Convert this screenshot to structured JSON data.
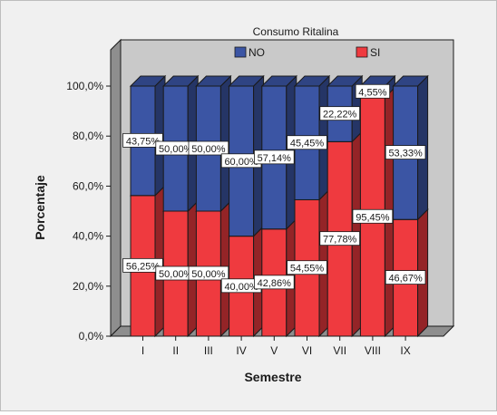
{
  "chart_data": {
    "type": "bar",
    "stacked": true,
    "style": "3d",
    "legend_title": "Consumo Ritalina",
    "legend_position": "top-center",
    "xlabel": "Semestre",
    "ylabel": "Porcentaje",
    "categories": [
      "I",
      "II",
      "III",
      "IV",
      "V",
      "VI",
      "VII",
      "VIII",
      "IX"
    ],
    "y_ticks": [
      "0,0%",
      "20,0%",
      "40,0%",
      "60,0%",
      "80,0%",
      "100,0%"
    ],
    "ylim": [
      0,
      100
    ],
    "series": [
      {
        "name": "SI",
        "color": "#ef3a3f",
        "values": [
          56.25,
          50.0,
          50.0,
          40.0,
          42.86,
          54.55,
          77.78,
          95.45,
          46.67
        ],
        "labels": [
          "56,25%",
          "50,00%",
          "50,00%",
          "40,00%",
          "42,86%",
          "54,55%",
          "77,78%",
          "95,45%",
          "46,67%"
        ]
      },
      {
        "name": "NO",
        "color": "#3b55a4",
        "values": [
          43.75,
          50.0,
          50.0,
          60.0,
          57.14,
          45.45,
          22.22,
          4.55,
          53.33
        ],
        "labels": [
          "43,75%",
          "50,00%",
          "50,00%",
          "60,00%",
          "57,14%",
          "45,45%",
          "22,22%",
          "4,55%",
          "53,33%"
        ]
      }
    ],
    "legend_order": [
      "NO",
      "SI"
    ],
    "grid": false
  }
}
